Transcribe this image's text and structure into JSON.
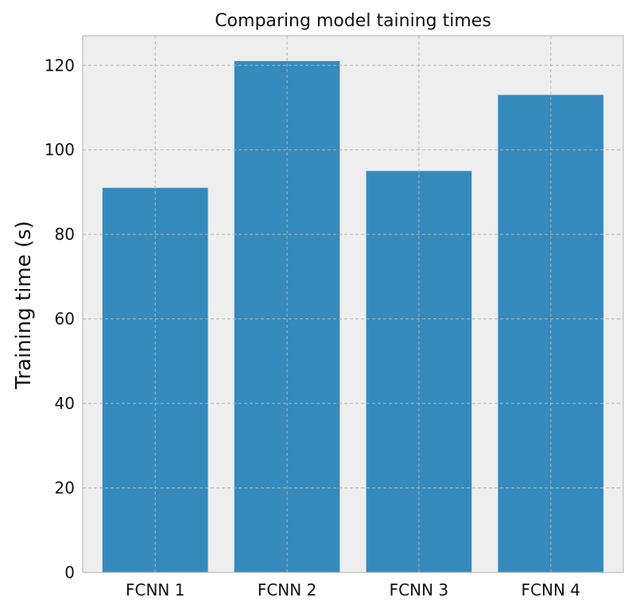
{
  "chart_data": {
    "type": "bar",
    "title": "Comparing model taining times",
    "xlabel": "",
    "ylabel": "Training time (s)",
    "categories": [
      "FCNN 1",
      "FCNN 2",
      "FCNN 3",
      "FCNN 4"
    ],
    "values": [
      91,
      121,
      95,
      113
    ],
    "ylim": [
      0,
      127
    ],
    "yticks": [
      0,
      20,
      40,
      60,
      80,
      100,
      120
    ],
    "grid": true,
    "bar_color": "#348abd",
    "plot_background": "#eeeeee"
  }
}
